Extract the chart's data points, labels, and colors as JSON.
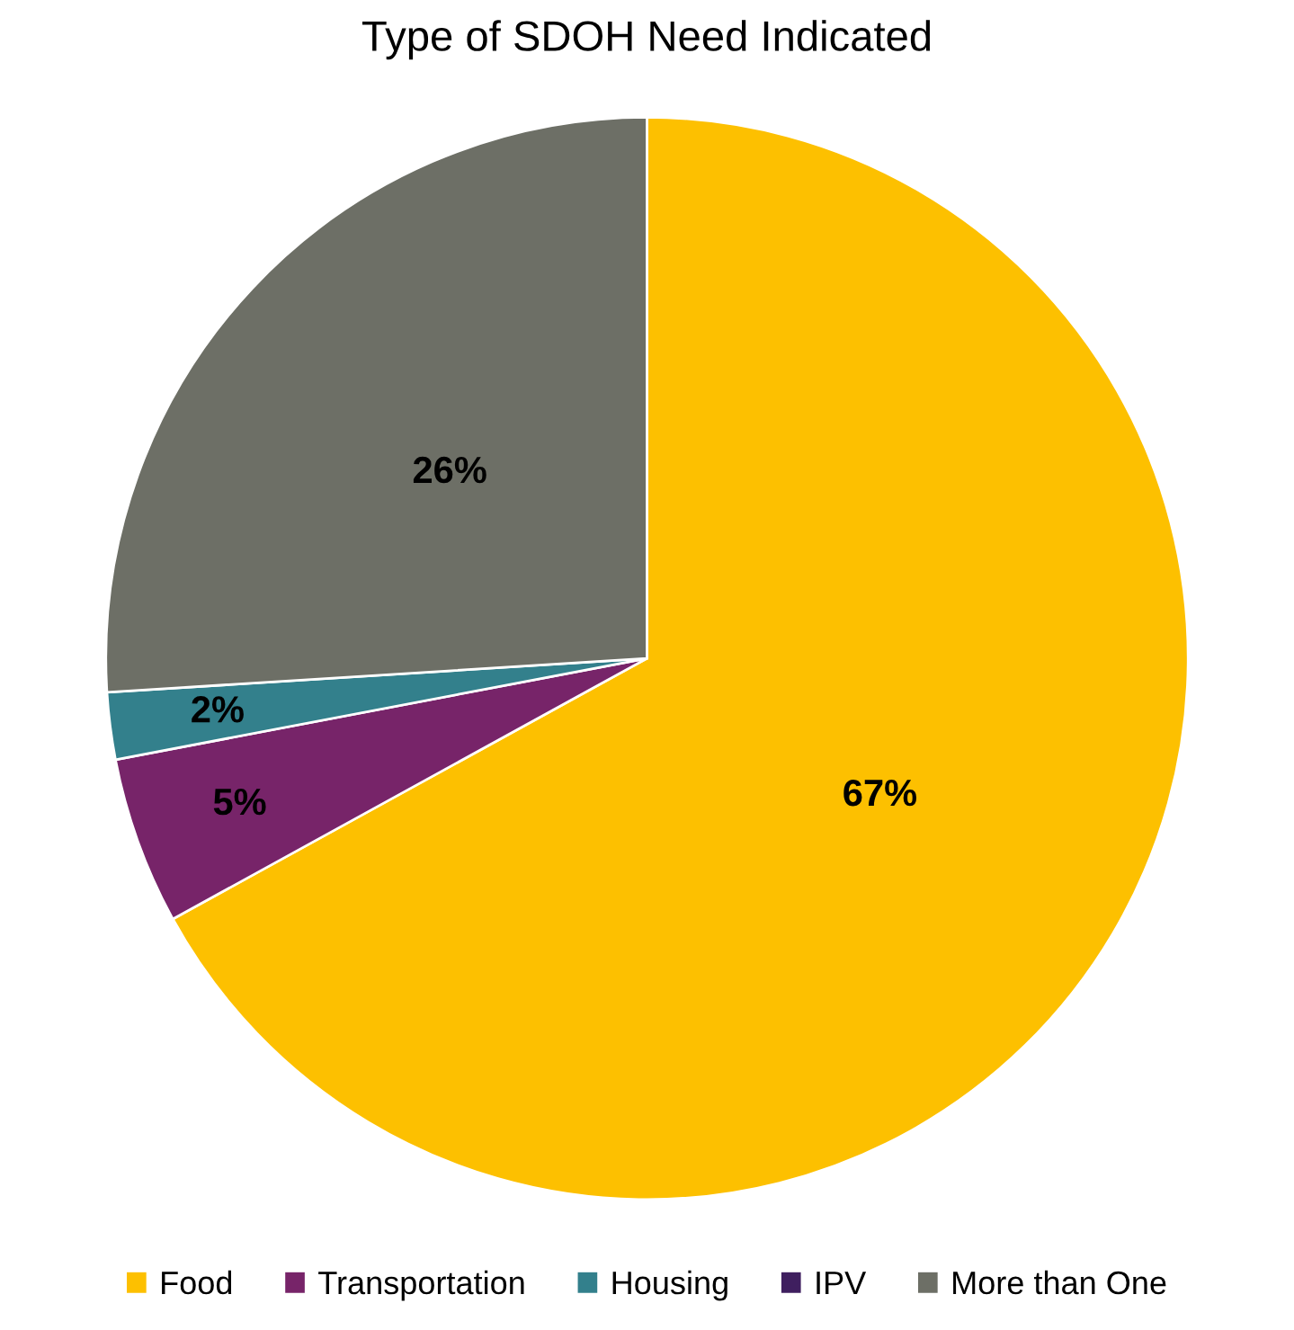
{
  "chart_data": {
    "type": "pie",
    "title": "Type of SDOH Need Indicated",
    "categories": [
      "Food",
      "Transportation",
      "Housing",
      "IPV",
      "More than One"
    ],
    "values": [
      67,
      5,
      2,
      0,
      26
    ],
    "colors": [
      "#fdc000",
      "#772469",
      "#33808c",
      "#3f1f5f",
      "#6d6f66"
    ],
    "value_labels": [
      "67%",
      "5%",
      "2%",
      null,
      "26%"
    ],
    "legend": "bottom"
  }
}
